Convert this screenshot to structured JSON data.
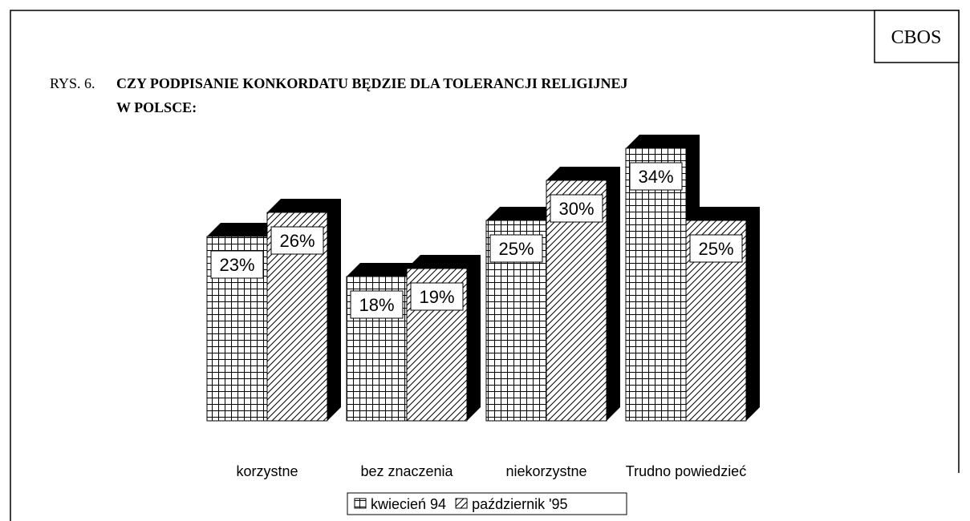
{
  "source": "CBOS",
  "chart_data": {
    "type": "bar3d",
    "figure_label": "RYS. 6.",
    "title": [
      "CZY PODPISANIE KONKORDATU BĘDZIE DLA TOLERANCJI RELIGIJNEJ",
      "W POLSCE:"
    ],
    "categories": [
      "korzystne",
      "bez znaczenia",
      "niekorzystne",
      "Trudno powiedzieć"
    ],
    "series": [
      {
        "name": "kwiecień 94",
        "pattern": "grid",
        "values": [
          23,
          18,
          25,
          34
        ],
        "value_labels": [
          "23%",
          "18%",
          "25%",
          "34%"
        ]
      },
      {
        "name": "październik '95",
        "pattern": "hatch",
        "values": [
          26,
          19,
          30,
          25
        ],
        "value_labels": [
          "26%",
          "19%",
          "30%",
          "25%"
        ]
      }
    ]
  }
}
